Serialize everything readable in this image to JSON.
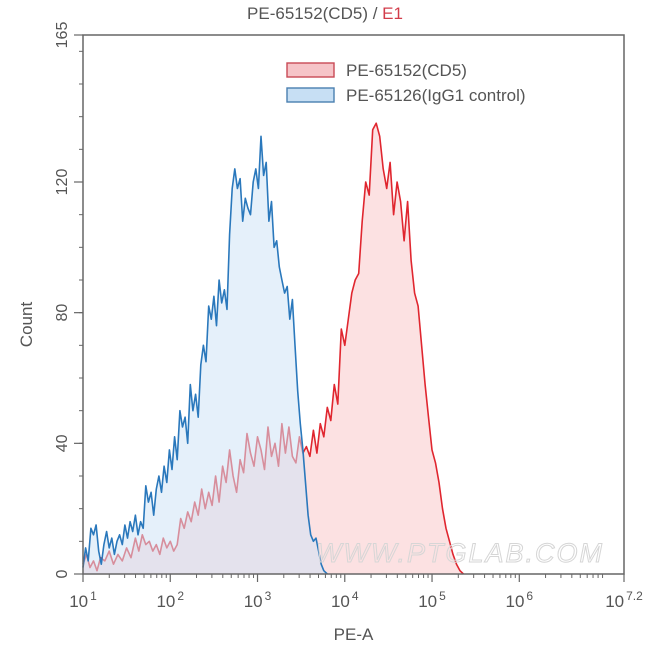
{
  "chart_data": {
    "type": "area",
    "title": "PE-65152(CD5) / E1",
    "title_parts": {
      "sample": "PE-65152(CD5)",
      "separator": " / ",
      "gate": "E1"
    },
    "xlabel": "PE-A",
    "ylabel": "Count",
    "x_scale": "log10",
    "xlim_log10": [
      1,
      7.2
    ],
    "ylim": [
      0,
      165
    ],
    "x_tick_labels": [
      {
        "base": "10",
        "exp": "1",
        "log": 1
      },
      {
        "base": "10",
        "exp": "2",
        "log": 2
      },
      {
        "base": "10",
        "exp": "3",
        "log": 3
      },
      {
        "base": "10",
        "exp": "4",
        "log": 4
      },
      {
        "base": "10",
        "exp": "5",
        "log": 5
      },
      {
        "base": "10",
        "exp": "6",
        "log": 6
      },
      {
        "base": "10",
        "exp": "7.2",
        "log": 7.2
      }
    ],
    "y_ticks": [
      0,
      40,
      80,
      120,
      165
    ],
    "y_minor_step": 10,
    "grid": false,
    "legend_position": "upper right (inside)",
    "watermark": "WWW.PTGLAB.COM",
    "series": [
      {
        "name": "PE-65152(CD5)",
        "stroke": "#e0262f",
        "fill": "#f9c9cb",
        "fill_opacity": 0.55,
        "points_log10": [
          [
            1.0,
            3
          ],
          [
            1.04,
            6
          ],
          [
            1.08,
            2
          ],
          [
            1.12,
            4
          ],
          [
            1.16,
            1
          ],
          [
            1.2,
            5
          ],
          [
            1.25,
            4
          ],
          [
            1.3,
            7
          ],
          [
            1.35,
            3
          ],
          [
            1.4,
            6
          ],
          [
            1.45,
            4
          ],
          [
            1.5,
            8
          ],
          [
            1.55,
            5
          ],
          [
            1.6,
            11
          ],
          [
            1.64,
            7
          ],
          [
            1.68,
            12
          ],
          [
            1.72,
            9
          ],
          [
            1.76,
            10
          ],
          [
            1.8,
            7
          ],
          [
            1.84,
            9
          ],
          [
            1.88,
            6
          ],
          [
            1.92,
            11
          ],
          [
            1.96,
            8
          ],
          [
            2.0,
            10
          ],
          [
            2.04,
            7
          ],
          [
            2.08,
            9
          ],
          [
            2.12,
            17
          ],
          [
            2.16,
            14
          ],
          [
            2.2,
            19
          ],
          [
            2.24,
            16
          ],
          [
            2.28,
            22
          ],
          [
            2.32,
            18
          ],
          [
            2.36,
            26
          ],
          [
            2.4,
            20
          ],
          [
            2.44,
            25
          ],
          [
            2.48,
            21
          ],
          [
            2.52,
            30
          ],
          [
            2.56,
            22
          ],
          [
            2.6,
            33
          ],
          [
            2.64,
            28
          ],
          [
            2.68,
            38
          ],
          [
            2.72,
            30
          ],
          [
            2.76,
            25
          ],
          [
            2.8,
            35
          ],
          [
            2.84,
            31
          ],
          [
            2.88,
            43
          ],
          [
            2.92,
            37
          ],
          [
            2.96,
            33
          ],
          [
            3.0,
            42
          ],
          [
            3.04,
            38
          ],
          [
            3.08,
            32
          ],
          [
            3.12,
            45
          ],
          [
            3.16,
            36
          ],
          [
            3.2,
            40
          ],
          [
            3.24,
            33
          ],
          [
            3.28,
            46
          ],
          [
            3.32,
            37
          ],
          [
            3.36,
            45
          ],
          [
            3.4,
            36
          ],
          [
            3.44,
            34
          ],
          [
            3.48,
            42
          ],
          [
            3.52,
            37
          ],
          [
            3.56,
            39
          ],
          [
            3.6,
            36
          ],
          [
            3.64,
            44
          ],
          [
            3.68,
            37
          ],
          [
            3.72,
            46
          ],
          [
            3.76,
            42
          ],
          [
            3.8,
            51
          ],
          [
            3.84,
            47
          ],
          [
            3.88,
            58
          ],
          [
            3.92,
            52
          ],
          [
            3.96,
            75
          ],
          [
            4.0,
            70
          ],
          [
            4.04,
            78
          ],
          [
            4.08,
            86
          ],
          [
            4.12,
            90
          ],
          [
            4.16,
            92
          ],
          [
            4.2,
            108
          ],
          [
            4.24,
            120
          ],
          [
            4.28,
            116
          ],
          [
            4.32,
            136
          ],
          [
            4.36,
            138
          ],
          [
            4.4,
            134
          ],
          [
            4.44,
            124
          ],
          [
            4.48,
            118
          ],
          [
            4.52,
            126
          ],
          [
            4.56,
            110
          ],
          [
            4.6,
            120
          ],
          [
            4.64,
            114
          ],
          [
            4.68,
            102
          ],
          [
            4.72,
            114
          ],
          [
            4.76,
            96
          ],
          [
            4.8,
            86
          ],
          [
            4.84,
            82
          ],
          [
            4.88,
            70
          ],
          [
            4.92,
            58
          ],
          [
            4.96,
            48
          ],
          [
            5.0,
            38
          ],
          [
            5.04,
            34
          ],
          [
            5.08,
            28
          ],
          [
            5.12,
            20
          ],
          [
            5.16,
            14
          ],
          [
            5.2,
            10
          ],
          [
            5.24,
            6
          ],
          [
            5.28,
            3
          ],
          [
            5.32,
            1
          ],
          [
            5.36,
            0
          ]
        ]
      },
      {
        "name": "PE-65126(IgG1 control)",
        "stroke": "#2a78bc",
        "fill": "#cfe3f5",
        "fill_opacity": 0.55,
        "points_log10": [
          [
            1.0,
            2
          ],
          [
            1.03,
            8
          ],
          [
            1.06,
            4
          ],
          [
            1.09,
            14
          ],
          [
            1.12,
            12
          ],
          [
            1.15,
            15
          ],
          [
            1.18,
            7
          ],
          [
            1.21,
            3
          ],
          [
            1.24,
            9
          ],
          [
            1.27,
            13
          ],
          [
            1.3,
            8
          ],
          [
            1.33,
            11
          ],
          [
            1.36,
            6
          ],
          [
            1.39,
            10
          ],
          [
            1.42,
            12
          ],
          [
            1.45,
            9
          ],
          [
            1.48,
            15
          ],
          [
            1.51,
            11
          ],
          [
            1.54,
            16
          ],
          [
            1.57,
            13
          ],
          [
            1.6,
            18
          ],
          [
            1.63,
            12
          ],
          [
            1.66,
            16
          ],
          [
            1.69,
            14
          ],
          [
            1.72,
            27
          ],
          [
            1.75,
            22
          ],
          [
            1.78,
            25
          ],
          [
            1.81,
            18
          ],
          [
            1.84,
            26
          ],
          [
            1.87,
            30
          ],
          [
            1.9,
            25
          ],
          [
            1.93,
            33
          ],
          [
            1.96,
            28
          ],
          [
            1.99,
            38
          ],
          [
            2.02,
            32
          ],
          [
            2.05,
            42
          ],
          [
            2.08,
            35
          ],
          [
            2.11,
            50
          ],
          [
            2.14,
            45
          ],
          [
            2.17,
            48
          ],
          [
            2.2,
            40
          ],
          [
            2.23,
            58
          ],
          [
            2.26,
            50
          ],
          [
            2.29,
            55
          ],
          [
            2.32,
            48
          ],
          [
            2.35,
            64
          ],
          [
            2.38,
            70
          ],
          [
            2.41,
            65
          ],
          [
            2.44,
            82
          ],
          [
            2.47,
            78
          ],
          [
            2.5,
            85
          ],
          [
            2.53,
            76
          ],
          [
            2.56,
            90
          ],
          [
            2.59,
            83
          ],
          [
            2.62,
            87
          ],
          [
            2.65,
            81
          ],
          [
            2.68,
            104
          ],
          [
            2.71,
            118
          ],
          [
            2.74,
            124
          ],
          [
            2.77,
            118
          ],
          [
            2.8,
            121
          ],
          [
            2.83,
            108
          ],
          [
            2.86,
            115
          ],
          [
            2.89,
            112
          ],
          [
            2.92,
            110
          ],
          [
            2.95,
            120
          ],
          [
            2.98,
            124
          ],
          [
            3.01,
            118
          ],
          [
            3.04,
            134
          ],
          [
            3.07,
            122
          ],
          [
            3.1,
            126
          ],
          [
            3.13,
            108
          ],
          [
            3.16,
            114
          ],
          [
            3.19,
            100
          ],
          [
            3.22,
            102
          ],
          [
            3.25,
            94
          ],
          [
            3.28,
            90
          ],
          [
            3.31,
            86
          ],
          [
            3.34,
            88
          ],
          [
            3.37,
            78
          ],
          [
            3.4,
            84
          ],
          [
            3.43,
            70
          ],
          [
            3.46,
            56
          ],
          [
            3.49,
            46
          ],
          [
            3.52,
            38
          ],
          [
            3.55,
            28
          ],
          [
            3.58,
            18
          ],
          [
            3.61,
            12
          ],
          [
            3.64,
            10
          ],
          [
            3.67,
            11
          ],
          [
            3.7,
            7
          ],
          [
            3.73,
            3
          ],
          [
            3.76,
            1
          ],
          [
            3.8,
            0
          ]
        ]
      }
    ]
  },
  "legend": {
    "items": [
      {
        "label": "PE-65152(CD5)",
        "stroke": "#c94a55",
        "fill": "#f6c4c8"
      },
      {
        "label": "PE-65126(IgG1 control)",
        "stroke": "#4a7fb0",
        "fill": "#c7dff4"
      }
    ]
  },
  "axes": {
    "frame_color": "#666666",
    "tick_label_color": "#555555"
  }
}
